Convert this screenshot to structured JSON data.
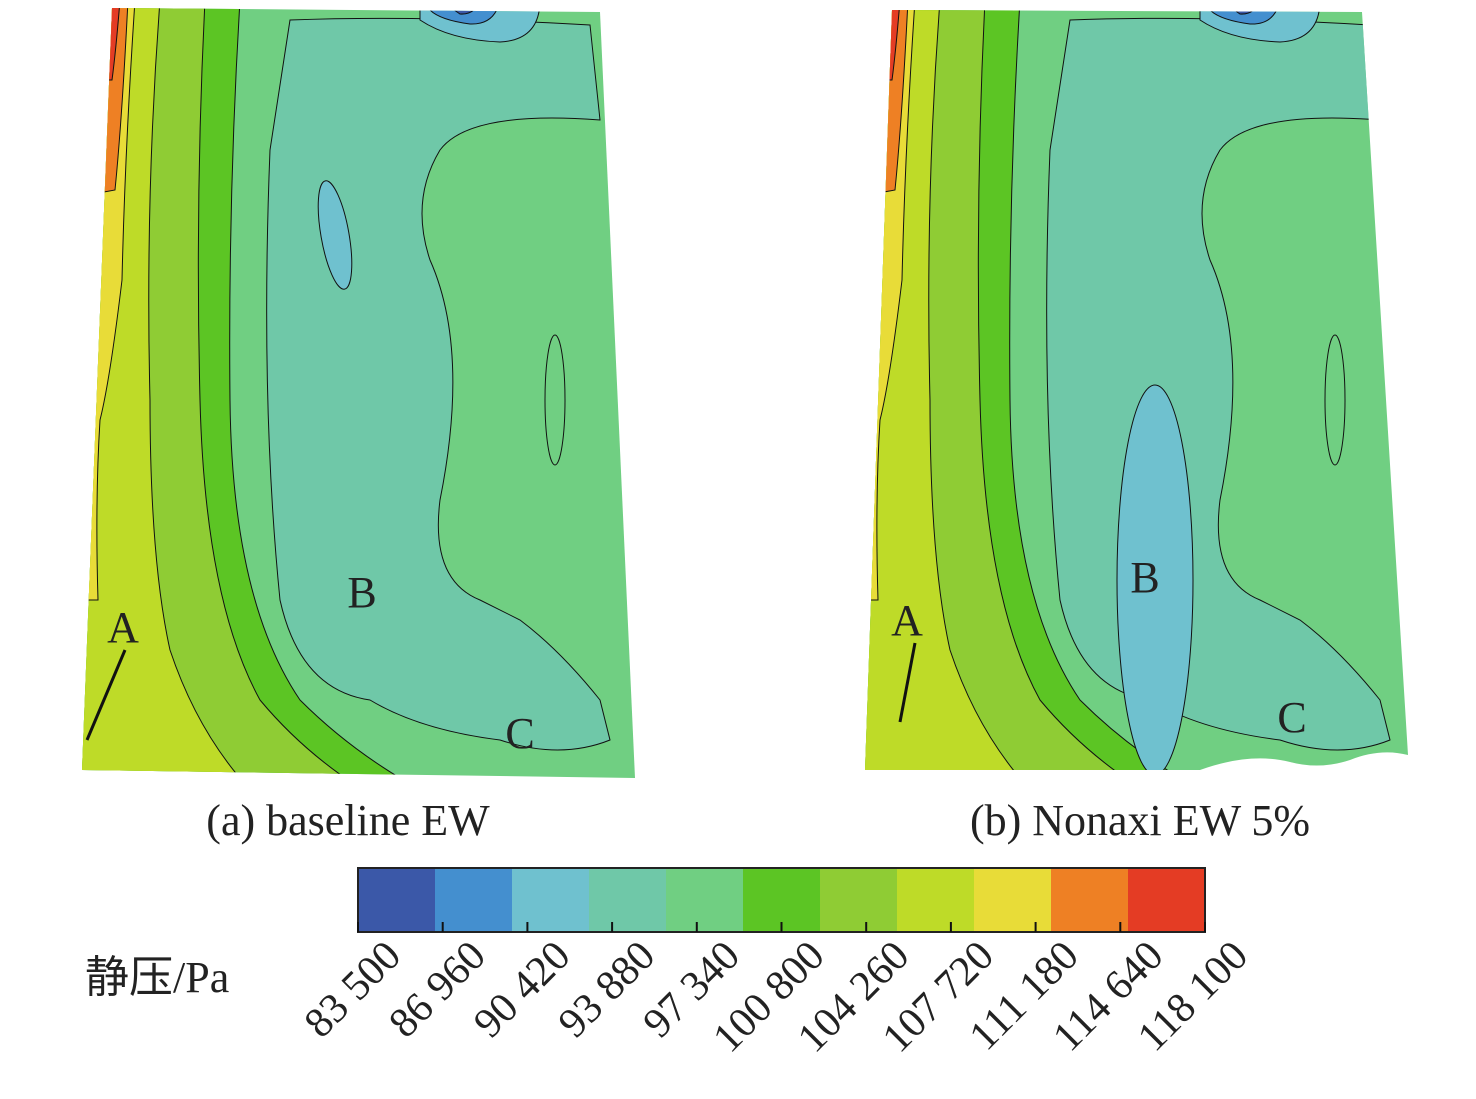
{
  "chart_data": {
    "type": "heatmap",
    "subtype": "filled-contour",
    "colorbar": {
      "label": "静压/Pa",
      "ticks": [
        "83 500",
        "86 960",
        "90 420",
        "93 880",
        "97 340",
        "100 800",
        "104 260",
        "107 720",
        "111 180",
        "114 640",
        "118 100"
      ],
      "range": [
        83500,
        118100
      ],
      "colors": [
        "#3b58a8",
        "#448fcf",
        "#6fc1cf",
        "#6fc8a8",
        "#70cf82",
        "#5cc524",
        "#8fcc34",
        "#bedb28",
        "#e8dc38",
        "#ee8024",
        "#e43c24"
      ]
    },
    "panels": [
      {
        "caption": "(a) baseline EW",
        "annotations": [
          "A",
          "B",
          "C"
        ]
      },
      {
        "caption": "(b) Nonaxi EW 5%",
        "annotations": [
          "A",
          "B",
          "C"
        ]
      }
    ]
  }
}
